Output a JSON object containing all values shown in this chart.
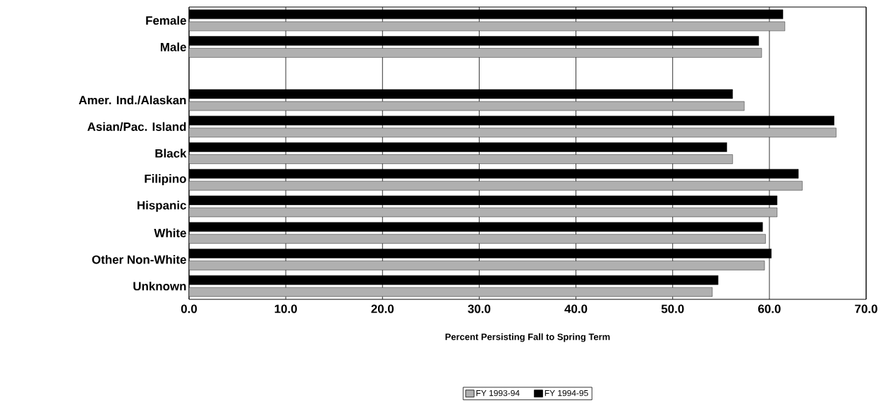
{
  "chart_data": {
    "type": "bar",
    "orientation": "horizontal",
    "xlabel": "Percent Persisting Fall to Spring Term",
    "categories": [
      "Female",
      "Male",
      null,
      "Amer. Ind./Alaskan",
      "Asian/Pac. Island",
      "Black",
      "Filipino",
      "Hispanic",
      "White",
      "Other Non-White",
      "Unknown"
    ],
    "series": [
      {
        "name": "FY 1993-94",
        "color": "#b0b0b0",
        "values": [
          61.6,
          59.2,
          null,
          57.4,
          66.9,
          56.2,
          63.4,
          60.8,
          59.6,
          59.5,
          54.1
        ]
      },
      {
        "name": "FY 1994-95",
        "color": "#000000",
        "values": [
          61.4,
          58.9,
          null,
          56.2,
          66.7,
          55.6,
          63.0,
          60.8,
          59.3,
          60.2,
          54.7
        ]
      }
    ],
    "xlim": [
      0,
      70
    ],
    "xticks": [
      {
        "value": 0,
        "label": "0.0"
      },
      {
        "value": 10,
        "label": "10.0"
      },
      {
        "value": 20,
        "label": "20.0"
      },
      {
        "value": 30,
        "label": "30.0"
      },
      {
        "value": 40,
        "label": "40.0"
      },
      {
        "value": 50,
        "label": "50.0"
      },
      {
        "value": 60,
        "label": "60.0"
      },
      {
        "value": 70,
        "label": "70.0"
      }
    ],
    "grid": "x",
    "legend": "bottom"
  }
}
